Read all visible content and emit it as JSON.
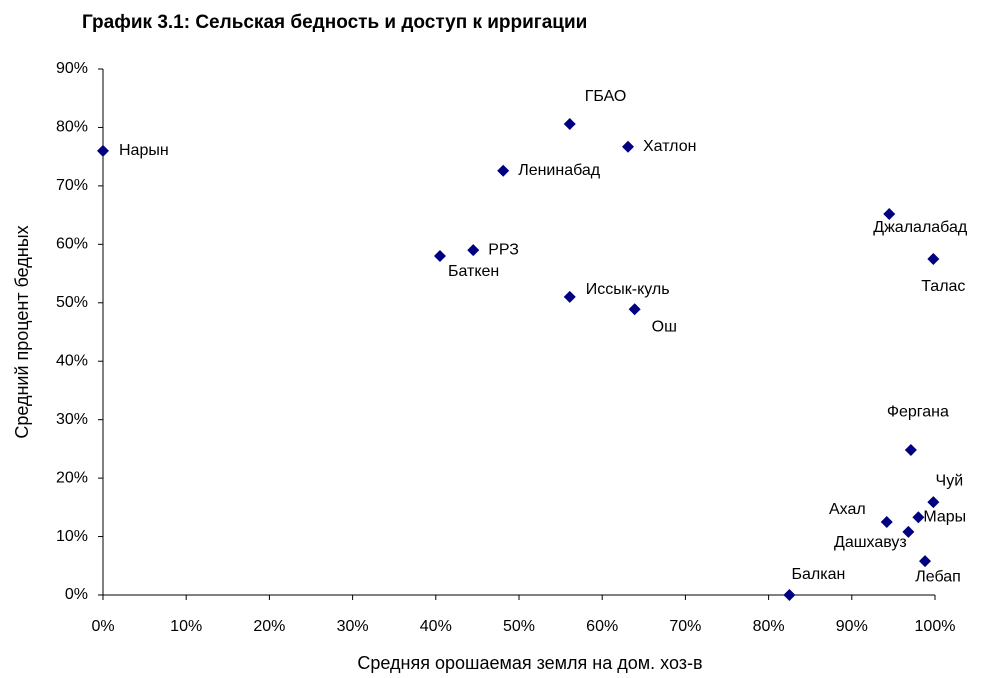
{
  "chart_data": {
    "type": "scatter",
    "title": "График 3.1: Сельская бедность и доступ к ирригации",
    "xlabel": "Средняя орошаемая земля на дом. хоз-в",
    "ylabel": "Средний процент бедных",
    "color": "#000080",
    "labels": [
      "Нарын",
      "ГБАО",
      "Хатлон",
      "Ленинабад",
      "Джалалабад",
      "Талас",
      "РРЗ",
      "Баткен",
      "Иссык-куль",
      "Ош",
      "Фергана",
      "Чуй",
      "Мары",
      "Ахал",
      "Дашхавуз",
      "Лебап",
      "Балкан"
    ],
    "x": [
      0,
      56.1,
      63.1,
      48.1,
      94.5,
      99.8,
      44.5,
      40.5,
      56.1,
      63.9,
      97.1,
      99.8,
      98.0,
      94.2,
      96.8,
      98.8,
      82.5
    ],
    "values": [
      76.0,
      80.6,
      76.7,
      72.6,
      65.2,
      57.5,
      59.0,
      58.0,
      51.0,
      48.9,
      24.8,
      15.9,
      13.3,
      12.5,
      10.8,
      5.8,
      0
    ],
    "xlim": [
      0,
      100
    ],
    "xticks": [
      {
        "value": 0,
        "label": "0%"
      },
      {
        "value": 10,
        "label": "10%"
      },
      {
        "value": 20,
        "label": "20%"
      },
      {
        "value": 30,
        "label": "30%"
      },
      {
        "value": 40,
        "label": "40%"
      },
      {
        "value": 50,
        "label": "50%"
      },
      {
        "value": 60,
        "label": "60%"
      },
      {
        "value": 70,
        "label": "70%"
      },
      {
        "value": 80,
        "label": "80%"
      },
      {
        "value": 90,
        "label": "90%"
      },
      {
        "value": 100,
        "label": "100%"
      }
    ],
    "ylim": [
      0,
      90
    ],
    "yticks": [
      {
        "value": 0,
        "label": "0%"
      },
      {
        "value": 10,
        "label": "10%"
      },
      {
        "value": 20,
        "label": "20%"
      },
      {
        "value": 30,
        "label": "30%"
      },
      {
        "value": 40,
        "label": "40%"
      },
      {
        "value": 50,
        "label": "50%"
      },
      {
        "value": 60,
        "label": "60%"
      },
      {
        "value": 70,
        "label": "70%"
      },
      {
        "value": 80,
        "label": "80%"
      },
      {
        "value": 90,
        "label": "90%"
      }
    ],
    "grid": false
  }
}
